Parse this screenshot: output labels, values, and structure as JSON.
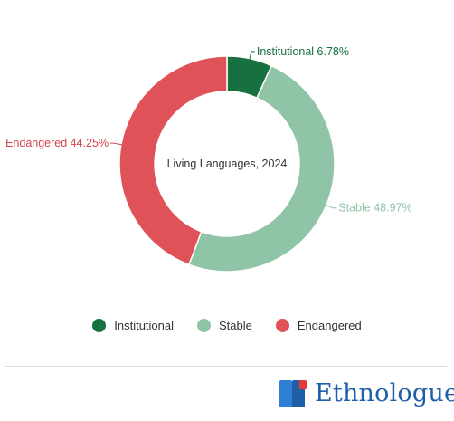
{
  "chart_data": {
    "type": "pie",
    "style": "donut",
    "center_text": "Living Languages, 2024",
    "slices": [
      {
        "name": "Institutional",
        "value": 6.78,
        "label": "Institutional 6.78%",
        "color": "#16703f",
        "label_color": "#16703f"
      },
      {
        "name": "Stable",
        "value": 48.97,
        "label": "Stable 48.97%",
        "color": "#8fc5a6",
        "label_color": "#8fc5a6"
      },
      {
        "name": "Endangered",
        "value": 44.25,
        "label": "Endangered 44.25%",
        "color": "#df5257",
        "label_color": "#d2454b"
      }
    ],
    "legend": {
      "placement": "bottom",
      "items": [
        "Institutional",
        "Stable",
        "Endangered"
      ]
    }
  },
  "brand": {
    "name": "Ethnologue",
    "icon": "ethnologue-logo-icon",
    "colors": {
      "primary": "#1f5fa8",
      "accent": "#e23a34"
    }
  }
}
